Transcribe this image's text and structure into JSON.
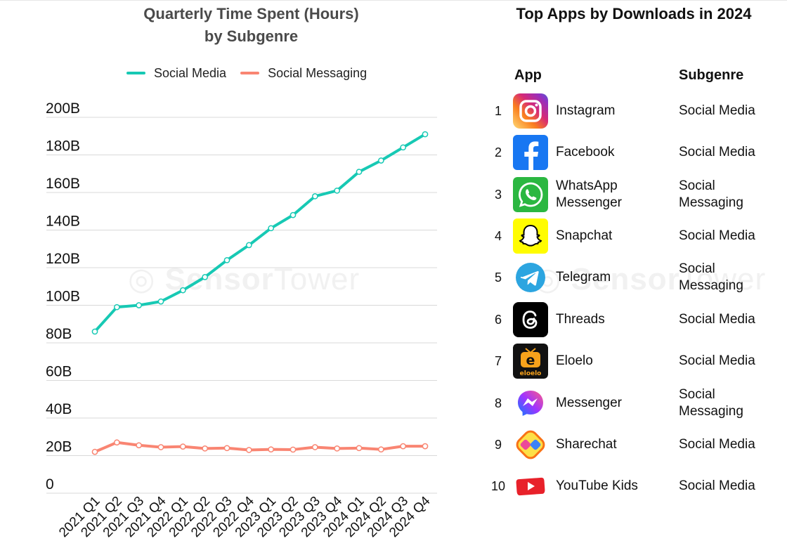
{
  "chart_title_line1": "Quarterly Time Spent (Hours)",
  "chart_title_line2": "by Subgenre",
  "table_title": "Top Apps by Downloads in 2024",
  "watermark": {
    "left": "Sensor",
    "right": "Tower"
  },
  "chart_data": {
    "type": "line",
    "title": "Quarterly Time Spent (Hours) by Subgenre",
    "xlabel": "",
    "ylabel": "",
    "categories": [
      "2021 Q1",
      "2021 Q2",
      "2021 Q3",
      "2021 Q4",
      "2022 Q1",
      "2022 Q2",
      "2022 Q3",
      "2022 Q4",
      "2023 Q1",
      "2023 Q2",
      "2023 Q3",
      "2023 Q4",
      "2024 Q1",
      "2024 Q2",
      "2024 Q3",
      "2024 Q4"
    ],
    "y_ticks": [
      {
        "value": 0,
        "label": "0"
      },
      {
        "value": 20,
        "label": "20B"
      },
      {
        "value": 40,
        "label": "40B"
      },
      {
        "value": 60,
        "label": "60B"
      },
      {
        "value": 80,
        "label": "80B"
      },
      {
        "value": 100,
        "label": "100B"
      },
      {
        "value": 120,
        "label": "120B"
      },
      {
        "value": 140,
        "label": "140B"
      },
      {
        "value": 160,
        "label": "160B"
      },
      {
        "value": 180,
        "label": "180B"
      },
      {
        "value": 200,
        "label": "200B"
      }
    ],
    "ylim": [
      0,
      200
    ],
    "y_unit": "billion hours",
    "grid": true,
    "legend_position": "top",
    "series": [
      {
        "name": "Social Media",
        "color": "#17c9b4",
        "values": [
          86,
          99,
          100,
          102,
          108,
          115,
          124,
          132,
          141,
          148,
          158,
          161,
          171,
          177,
          184,
          191
        ]
      },
      {
        "name": "Social Messaging",
        "color": "#f98572",
        "values": [
          22,
          27,
          25.5,
          24.5,
          24.8,
          23.8,
          24,
          23,
          23.3,
          23.2,
          24.5,
          23.8,
          24,
          23.3,
          25,
          25
        ]
      }
    ]
  },
  "table": {
    "headers": {
      "app": "App",
      "subgenre": "Subgenre"
    },
    "rows": [
      {
        "rank": "1",
        "app": "Instagram",
        "subgenre": "Social Media",
        "icon": "instagram-icon"
      },
      {
        "rank": "2",
        "app": "Facebook",
        "subgenre": "Social Media",
        "icon": "facebook-icon"
      },
      {
        "rank": "3",
        "app": "WhatsApp Messenger",
        "subgenre": "Social Messaging",
        "icon": "whatsapp-icon"
      },
      {
        "rank": "4",
        "app": "Snapchat",
        "subgenre": "Social Media",
        "icon": "snapchat-icon"
      },
      {
        "rank": "5",
        "app": "Telegram",
        "subgenre": "Social Messaging",
        "icon": "telegram-icon"
      },
      {
        "rank": "6",
        "app": "Threads",
        "subgenre": "Social Media",
        "icon": "threads-icon"
      },
      {
        "rank": "7",
        "app": "Eloelo",
        "subgenre": "Social Media",
        "icon": "eloelo-icon"
      },
      {
        "rank": "8",
        "app": "Messenger",
        "subgenre": "Social Messaging",
        "icon": "messenger-icon"
      },
      {
        "rank": "9",
        "app": "Sharechat",
        "subgenre": "Social Media",
        "icon": "sharechat-icon"
      },
      {
        "rank": "10",
        "app": "YouTube Kids",
        "subgenre": "Social Media",
        "icon": "youtube-kids-icon"
      }
    ]
  }
}
